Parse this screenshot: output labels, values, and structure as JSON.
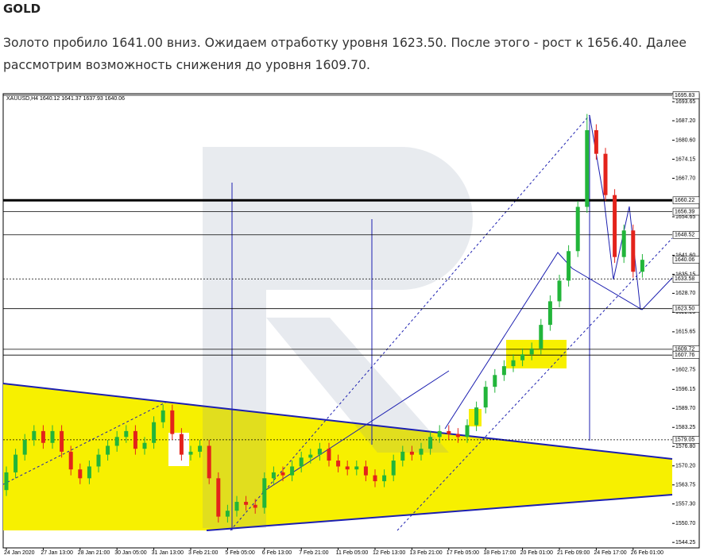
{
  "header": {
    "title": "GOLD",
    "text": "Золото пробило 1641.00 вниз. Ожидаем отработку уровня 1623.50. После этого - рост к 1656.40. Далее рассмотрим возможность снижения до уровня 1609.70."
  },
  "chart_data": {
    "type": "candlestick",
    "symbol_info": "XAUUSD,H4  1640.12 1641.37 1637.93 1640.06",
    "categories": [
      "24 Jan 2020",
      null,
      null,
      null,
      "27 Jan 13:00",
      null,
      null,
      null,
      "28 Jan 21:00",
      null,
      null,
      null,
      "30 Jan 05:00",
      null,
      null,
      null,
      "31 Jan 13:00",
      null,
      null,
      null,
      "3 Feb 21:00",
      null,
      null,
      null,
      "5 Feb 05:00",
      null,
      null,
      null,
      "6 Feb 13:00",
      null,
      null,
      null,
      "7 Feb 21:00",
      null,
      null,
      null,
      "11 Feb 05:00",
      null,
      null,
      null,
      "12 Feb 13:00",
      null,
      null,
      null,
      "13 Feb 21:00",
      null,
      null,
      null,
      "17 Feb 05:00",
      null,
      null,
      null,
      "18 Feb 17:00",
      null,
      null,
      null,
      "20 Feb 01:00",
      null,
      null,
      null,
      "21 Feb 09:00",
      null,
      null,
      null,
      "24 Feb 17:00",
      null,
      null,
      null,
      "26 Feb 01:00",
      null
    ],
    "open": [
      1562,
      1568,
      1574,
      1579,
      1582,
      1578,
      1582,
      1575,
      1569,
      1566,
      1570,
      1574,
      1577,
      1580,
      1582,
      1576,
      1578,
      1585,
      1589,
      1581,
      1574,
      1575,
      1577,
      1566,
      1553,
      1555,
      1558,
      1557,
      1556,
      1566,
      1568,
      1567,
      1570,
      1573,
      1574,
      1576,
      1572,
      1570,
      1569,
      1570,
      1567,
      1565,
      1567,
      1572,
      1575,
      1574,
      1576,
      1580,
      1582,
      1581,
      1580,
      1584,
      1590,
      1597,
      1601,
      1604,
      1606,
      1608,
      1610,
      1618,
      1626,
      1633,
      1643,
      1658,
      1684,
      1676,
      1662,
      1641,
      1650,
      1636
    ],
    "high": [
      1570,
      1576,
      1581,
      1584,
      1584,
      1584,
      1584,
      1577,
      1571,
      1572,
      1576,
      1579,
      1582,
      1584,
      1584,
      1580,
      1587,
      1591,
      1591,
      1583,
      1577,
      1579,
      1579,
      1568,
      1557,
      1560,
      1560,
      1559,
      1568,
      1570,
      1570,
      1572,
      1575,
      1576,
      1578,
      1578,
      1574,
      1572,
      1572,
      1572,
      1569,
      1569,
      1574,
      1577,
      1577,
      1578,
      1582,
      1584,
      1584,
      1583,
      1586,
      1592,
      1599,
      1603,
      1606,
      1608,
      1610,
      1612,
      1620,
      1628,
      1635,
      1645,
      1660,
      1689.5,
      1686,
      1678,
      1664,
      1652,
      1652,
      1642
    ],
    "low": [
      1560,
      1566,
      1572,
      1577,
      1576,
      1576,
      1573,
      1567,
      1564,
      1564,
      1568,
      1572,
      1575,
      1578,
      1574,
      1574,
      1576,
      1583,
      1579,
      1572,
      1572,
      1573,
      1564,
      1551,
      1551,
      1553,
      1555,
      1554,
      1554,
      1564,
      1565,
      1565,
      1568,
      1571,
      1572,
      1570,
      1568,
      1567,
      1567,
      1565,
      1563,
      1563,
      1565,
      1570,
      1572,
      1572,
      1574,
      1578,
      1579,
      1578,
      1578,
      1582,
      1588,
      1595,
      1599,
      1602,
      1604,
      1606,
      1608,
      1616,
      1624,
      1631,
      1641,
      1656,
      1674,
      1660,
      1639,
      1639,
      1634,
      1634
    ],
    "close": [
      1568,
      1574,
      1579,
      1582,
      1578,
      1582,
      1575,
      1569,
      1566,
      1570,
      1574,
      1577,
      1580,
      1582,
      1576,
      1578,
      1585,
      1589,
      1581,
      1574,
      1575,
      1577,
      1566,
      1553,
      1555,
      1558,
      1557,
      1556,
      1566,
      1568,
      1567,
      1570,
      1573,
      1574,
      1576,
      1572,
      1570,
      1569,
      1570,
      1567,
      1565,
      1567,
      1572,
      1575,
      1574,
      1576,
      1580,
      1582,
      1581,
      1580,
      1584,
      1590,
      1597,
      1601,
      1604,
      1606,
      1608,
      1610,
      1618,
      1626,
      1633,
      1643,
      1658,
      1684,
      1676,
      1662,
      1641,
      1650,
      1636,
      1640.06
    ],
    "up_color": "#22b53a",
    "down_color": "#e3231b",
    "ylim": [
      1542.4,
      1695.83
    ],
    "yticks": [
      1693.65,
      {
        "value": 1687.2,
        "label": "1687.20"
      },
      {
        "value": 1680.6,
        "label": "1680.60"
      },
      1674.15,
      {
        "value": 1667.7,
        "label": "1667.70"
      },
      1654.65,
      {
        "value": 1641.6,
        "label": "1641.60"
      },
      1635.15,
      {
        "value": 1628.7,
        "label": "1628.70"
      },
      1622.25,
      1615.65,
      1602.75,
      1596.15,
      {
        "value": 1589.7,
        "label": "1589.70"
      },
      1583.25,
      {
        "value": 1576.8,
        "label": "1576.80"
      },
      {
        "value": 1570.2,
        "label": "1570.20"
      },
      1563.75,
      {
        "value": 1557.3,
        "label": "1557.30"
      },
      {
        "value": 1550.7,
        "label": "1550.70"
      },
      1544.25
    ],
    "levels": [
      1695.83,
      1660.22,
      1656.39,
      1648.52,
      1640.06,
      1633.58,
      {
        "value": 1623.5,
        "label": "1623.50"
      },
      1609.72,
      1607.76,
      1579.05
    ],
    "level_styles": [
      "solid",
      "bold",
      "solid",
      "solid",
      "none",
      "dotted",
      "solid",
      "solid",
      "solid",
      "dotted"
    ],
    "grid": false
  }
}
